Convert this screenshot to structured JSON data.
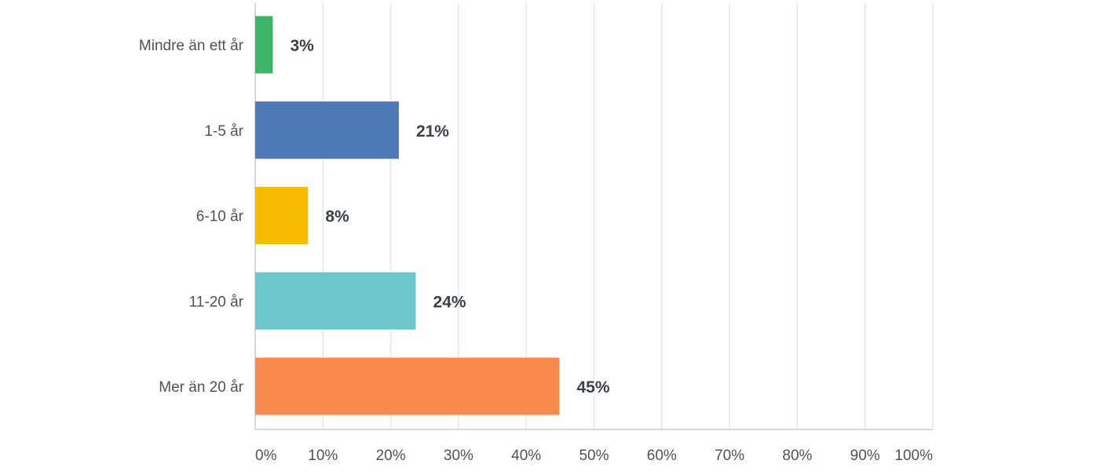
{
  "chart_data": {
    "type": "bar",
    "orientation": "horizontal",
    "categories": [
      "Mindre än ett år",
      "1-5 år",
      "6-10 år",
      "11-20 år",
      "Mer än 20 år"
    ],
    "values": [
      2.6,
      21.2,
      7.8,
      23.7,
      44.9
    ],
    "value_labels": [
      "3%",
      "21%",
      "8%",
      "24%",
      "45%"
    ],
    "bar_colors": [
      "#3db468",
      "#4d79b6",
      "#f7bc00",
      "#6cc8cc",
      "#f88a4e"
    ],
    "xlim": [
      0,
      100
    ],
    "x_ticks": [
      "0%",
      "10%",
      "20%",
      "30%",
      "40%",
      "50%",
      "60%",
      "70%",
      "80%",
      "90%",
      "100%"
    ],
    "title": "",
    "xlabel": "",
    "ylabel": "",
    "grid": "vertical",
    "legend": "none"
  }
}
